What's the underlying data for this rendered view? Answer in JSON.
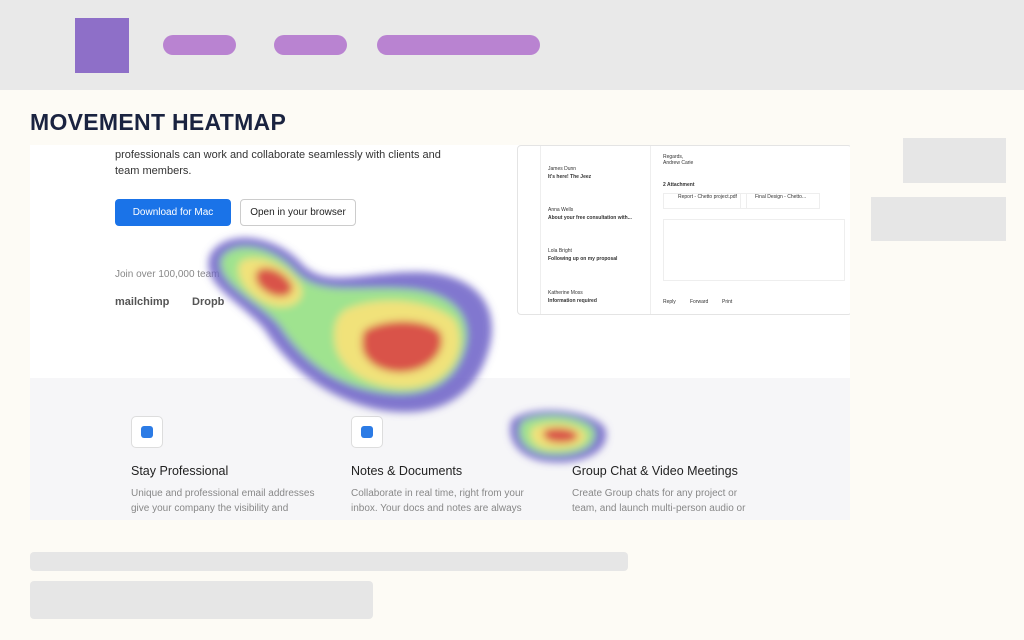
{
  "header": {
    "title": "MOVEMENT HEATMAP"
  },
  "hero": {
    "lines": [
      "professionals can work and collaborate seamlessly with clients and",
      "team members."
    ],
    "primary_button": "Download for Mac",
    "secondary_button": "Open in your browser",
    "social_proof": "Join over 100,000 team",
    "logos": [
      "mailchimp",
      "Dropb",
      "ogle"
    ]
  },
  "mail": {
    "list": [
      {
        "sender": "James Dunn",
        "subject": "It's here! The Jeez"
      },
      {
        "sender": "Anna Wells",
        "subject": "About your free consultation with..."
      },
      {
        "sender": "Lola Bright",
        "subject": "Following up on my proposal"
      },
      {
        "sender": "Katherine Moss",
        "subject": "Information required"
      }
    ],
    "regards": "Regards,",
    "signature": "Andrew Carie",
    "attachments_label": "2 Attachment",
    "attachments": [
      "Report - Chetto project.pdf",
      "Final Design - Chetto..."
    ],
    "actions": [
      "Reply",
      "Forward",
      "Print"
    ]
  },
  "features": [
    {
      "title": "Stay Professional",
      "lines": [
        "Unique and professional email addresses",
        "give your company the visibility and"
      ]
    },
    {
      "title": "Notes & Documents",
      "lines": [
        "Collaborate in real time, right from your",
        "inbox. Your docs and notes are always"
      ]
    },
    {
      "title": "Group Chat & Video Meetings",
      "lines": [
        "Create Group chats for any project or",
        "team, and launch multi-person audio or"
      ]
    }
  ]
}
